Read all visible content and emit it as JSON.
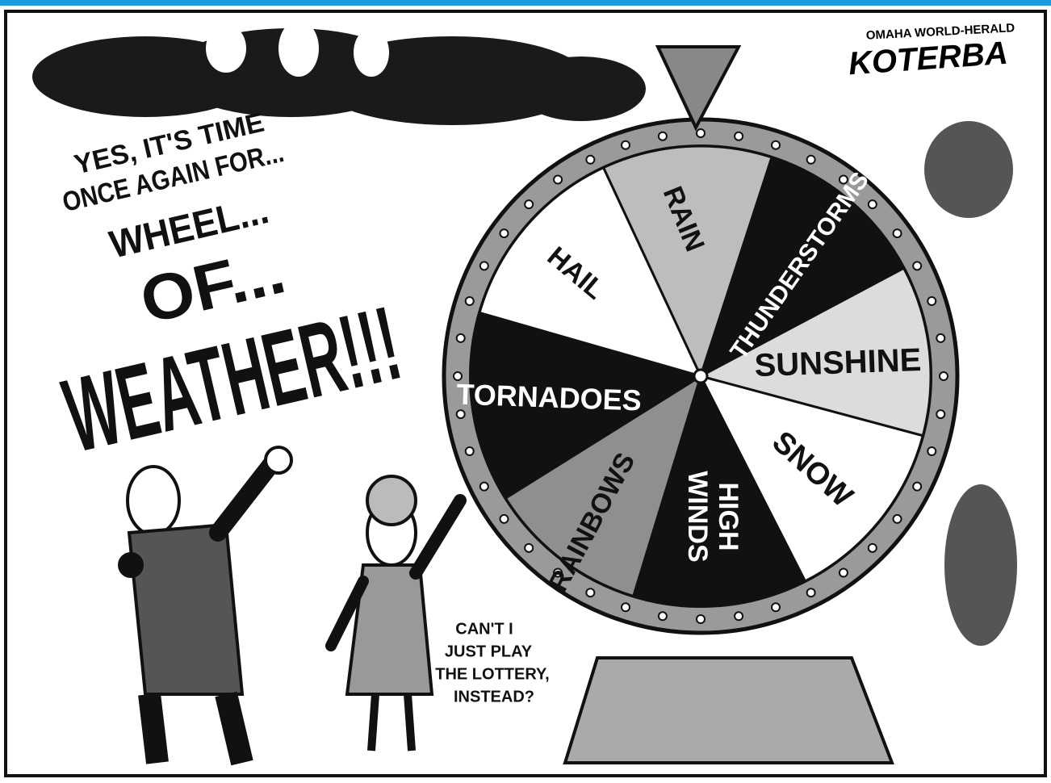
{
  "credit": {
    "paper": "OMAHA WORLD-HERALD",
    "artist": "KOTERBA"
  },
  "host_speech": {
    "lines": [
      "YES, IT'S TIME",
      "ONCE AGAIN FOR...",
      "WHEEL...",
      "OF...",
      "WEATHER!!!"
    ]
  },
  "wheel": {
    "segments": [
      {
        "lines": [
          "RAIN"
        ]
      },
      {
        "lines": [
          "THUNDERSTORMS"
        ]
      },
      {
        "lines": [
          "SUNSHINE"
        ]
      },
      {
        "lines": [
          "SNOW"
        ]
      },
      {
        "lines": [
          "HIGH",
          "WINDS"
        ]
      },
      {
        "lines": [
          "RAINBOWS"
        ]
      },
      {
        "lines": [
          "TORNADOES"
        ]
      },
      {
        "lines": [
          "HAIL"
        ]
      }
    ]
  },
  "contestant_speech": {
    "lines": [
      "CAN'T I",
      "JUST PLAY",
      "THE LOTTERY,",
      "INSTEAD?"
    ]
  }
}
